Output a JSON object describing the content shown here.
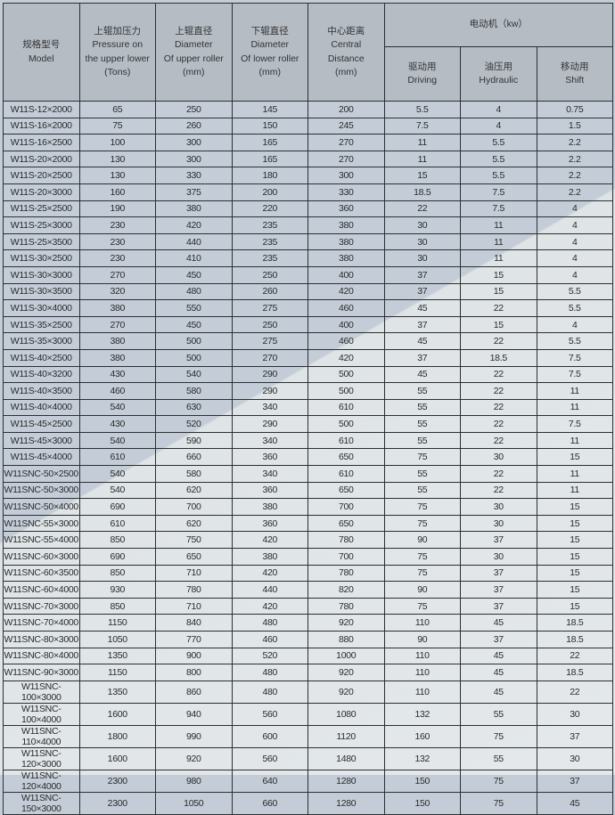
{
  "header": {
    "model": {
      "cn": "规格型号",
      "en": "Model"
    },
    "pressure": {
      "cn": "上辊加压力",
      "en1": "Pressure on",
      "en2": "the upper lower",
      "unit": "(Tons)"
    },
    "upper_dia": {
      "cn": "上辊直径",
      "en1": "Diameter",
      "en2": "Of upper roller",
      "unit": "(mm)"
    },
    "lower_dia": {
      "cn": "下辊直径",
      "en1": "Diameter",
      "en2": "Of lower roller",
      "unit": "(mm)"
    },
    "center": {
      "cn": "中心距离",
      "en1": "Central",
      "en2": "Distance",
      "unit": "(mm)"
    },
    "motor": "电动机（kw）",
    "driving": {
      "cn": "驱动用",
      "en": "Driving"
    },
    "hydraulic": {
      "cn": "油压用",
      "en": "Hydraulic"
    },
    "shift": {
      "cn": "移动用",
      "en": "Shift"
    }
  },
  "rows": [
    [
      "W11S-12×2000",
      "65",
      "250",
      "145",
      "200",
      "5.5",
      "4",
      "0.75"
    ],
    [
      "W11S-16×2000",
      "75",
      "260",
      "150",
      "245",
      "7.5",
      "4",
      "1.5"
    ],
    [
      "W11S-16×2500",
      "100",
      "300",
      "165",
      "270",
      "11",
      "5.5",
      "2.2"
    ],
    [
      "W11S-20×2000",
      "130",
      "300",
      "165",
      "270",
      "11",
      "5.5",
      "2.2"
    ],
    [
      "W11S-20×2500",
      "130",
      "330",
      "180",
      "300",
      "15",
      "5.5",
      "2.2"
    ],
    [
      "W11S-20×3000",
      "160",
      "375",
      "200",
      "330",
      "18.5",
      "7.5",
      "2.2"
    ],
    [
      "W11S-25×2500",
      "190",
      "380",
      "220",
      "360",
      "22",
      "7.5",
      "4"
    ],
    [
      "W11S-25×3000",
      "230",
      "420",
      "235",
      "380",
      "30",
      "11",
      "4"
    ],
    [
      "W11S-25×3500",
      "230",
      "440",
      "235",
      "380",
      "30",
      "11",
      "4"
    ],
    [
      "W11S-30×2500",
      "230",
      "410",
      "235",
      "380",
      "30",
      "11",
      "4"
    ],
    [
      "W11S-30×3000",
      "270",
      "450",
      "250",
      "400",
      "37",
      "15",
      "4"
    ],
    [
      "W11S-30×3500",
      "320",
      "480",
      "260",
      "420",
      "37",
      "15",
      "5.5"
    ],
    [
      "W11S-30×4000",
      "380",
      "550",
      "275",
      "460",
      "45",
      "22",
      "5.5"
    ],
    [
      "W11S-35×2500",
      "270",
      "450",
      "250",
      "400",
      "37",
      "15",
      "4"
    ],
    [
      "W11S-35×3000",
      "380",
      "500",
      "275",
      "460",
      "45",
      "22",
      "5.5"
    ],
    [
      "W11S-40×2500",
      "380",
      "500",
      "270",
      "420",
      "37",
      "18.5",
      "7.5"
    ],
    [
      "W11S-40×3200",
      "430",
      "540",
      "290",
      "500",
      "45",
      "22",
      "7.5"
    ],
    [
      "W11S-40×3500",
      "460",
      "580",
      "290",
      "500",
      "55",
      "22",
      "11"
    ],
    [
      "W11S-40×4000",
      "540",
      "630",
      "340",
      "610",
      "55",
      "22",
      "11"
    ],
    [
      "W11S-45×2500",
      "430",
      "520",
      "290",
      "500",
      "55",
      "22",
      "7.5"
    ],
    [
      "W11S-45×3000",
      "540",
      "590",
      "340",
      "610",
      "55",
      "22",
      "11"
    ],
    [
      "W11S-45×4000",
      "610",
      "660",
      "360",
      "650",
      "75",
      "30",
      "15"
    ],
    [
      "W11SNC-50×2500",
      "540",
      "580",
      "340",
      "610",
      "55",
      "22",
      "11"
    ],
    [
      "W11SNC-50×3000",
      "540",
      "620",
      "360",
      "650",
      "55",
      "22",
      "11"
    ],
    [
      "W11SNC-50×4000",
      "690",
      "700",
      "380",
      "700",
      "75",
      "30",
      "15"
    ],
    [
      "W11SNC-55×3000",
      "610",
      "620",
      "360",
      "650",
      "75",
      "30",
      "15"
    ],
    [
      "W11SNC-55×4000",
      "850",
      "750",
      "420",
      "780",
      "90",
      "37",
      "15"
    ],
    [
      "W11SNC-60×3000",
      "690",
      "650",
      "380",
      "700",
      "75",
      "30",
      "15"
    ],
    [
      "W11SNC-60×3500",
      "850",
      "710",
      "420",
      "780",
      "75",
      "37",
      "15"
    ],
    [
      "W11SNC-60×4000",
      "930",
      "780",
      "440",
      "820",
      "90",
      "37",
      "15"
    ],
    [
      "W11SNC-70×3000",
      "850",
      "710",
      "420",
      "780",
      "75",
      "37",
      "15"
    ],
    [
      "W11SNC-70×4000",
      "1150",
      "840",
      "480",
      "920",
      "110",
      "45",
      "18.5"
    ],
    [
      "W11SNC-80×3000",
      "1050",
      "770",
      "460",
      "880",
      "90",
      "37",
      "18.5"
    ],
    [
      "W11SNC-80×4000",
      "1350",
      "900",
      "520",
      "1000",
      "110",
      "45",
      "22"
    ],
    [
      "W11SNC-90×3000",
      "1150",
      "800",
      "480",
      "920",
      "110",
      "45",
      "18.5"
    ],
    [
      "W11SNC-100×3000",
      "1350",
      "860",
      "480",
      "920",
      "110",
      "45",
      "22"
    ],
    [
      "W11SNC-100×4000",
      "1600",
      "940",
      "560",
      "1080",
      "132",
      "55",
      "30"
    ],
    [
      "W11SNC-110×4000",
      "1800",
      "990",
      "600",
      "1120",
      "160",
      "75",
      "37"
    ],
    [
      "W11SNC-120×3000",
      "1600",
      "920",
      "560",
      "1480",
      "132",
      "55",
      "30"
    ],
    [
      "W11SNC-120×4000",
      "2300",
      "980",
      "640",
      "1280",
      "150",
      "75",
      "37"
    ],
    [
      "W11SNC-150×3000",
      "2300",
      "1050",
      "660",
      "1280",
      "150",
      "75",
      "45"
    ]
  ]
}
